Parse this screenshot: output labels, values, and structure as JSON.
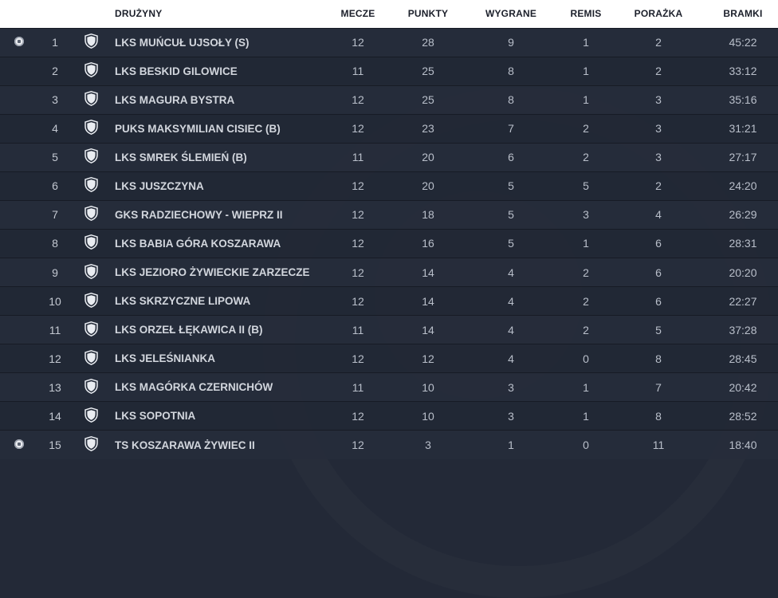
{
  "headers": {
    "team": "Drużyny",
    "played": "Mecze",
    "points": "Punkty",
    "wins": "Wygrane",
    "draws": "Remis",
    "losses": "Porażka",
    "goals": "Bramki"
  },
  "icons": {
    "ball": "soccer-ball-icon",
    "crest": "shield-crest-icon"
  },
  "rows": [
    {
      "pos": "1",
      "team": "LKS MUŃCUŁ UJSOŁY (S)",
      "played": "12",
      "points": "28",
      "wins": "9",
      "draws": "1",
      "losses": "2",
      "goals": "45:22",
      "marker": true
    },
    {
      "pos": "2",
      "team": "LKS BESKID GILOWICE",
      "played": "11",
      "points": "25",
      "wins": "8",
      "draws": "1",
      "losses": "2",
      "goals": "33:12",
      "marker": false
    },
    {
      "pos": "3",
      "team": "LKS MAGURA BYSTRA",
      "played": "12",
      "points": "25",
      "wins": "8",
      "draws": "1",
      "losses": "3",
      "goals": "35:16",
      "marker": false
    },
    {
      "pos": "4",
      "team": "PUKS MAKSYMILIAN CISIEC (B)",
      "played": "12",
      "points": "23",
      "wins": "7",
      "draws": "2",
      "losses": "3",
      "goals": "31:21",
      "marker": false
    },
    {
      "pos": "5",
      "team": "LKS SMREK ŚLEMIEŃ (B)",
      "played": "11",
      "points": "20",
      "wins": "6",
      "draws": "2",
      "losses": "3",
      "goals": "27:17",
      "marker": false
    },
    {
      "pos": "6",
      "team": "LKS JUSZCZYNA",
      "played": "12",
      "points": "20",
      "wins": "5",
      "draws": "5",
      "losses": "2",
      "goals": "24:20",
      "marker": false
    },
    {
      "pos": "7",
      "team": "GKS RADZIECHOWY - WIEPRZ II",
      "played": "12",
      "points": "18",
      "wins": "5",
      "draws": "3",
      "losses": "4",
      "goals": "26:29",
      "marker": false
    },
    {
      "pos": "8",
      "team": "LKS BABIA GÓRA KOSZARAWA",
      "played": "12",
      "points": "16",
      "wins": "5",
      "draws": "1",
      "losses": "6",
      "goals": "28:31",
      "marker": false
    },
    {
      "pos": "9",
      "team": "LKS JEZIORO ŻYWIECKIE ZARZECZE",
      "played": "12",
      "points": "14",
      "wins": "4",
      "draws": "2",
      "losses": "6",
      "goals": "20:20",
      "marker": false
    },
    {
      "pos": "10",
      "team": "LKS SKRZYCZNE LIPOWA",
      "played": "12",
      "points": "14",
      "wins": "4",
      "draws": "2",
      "losses": "6",
      "goals": "22:27",
      "marker": false
    },
    {
      "pos": "11",
      "team": "LKS ORZEŁ ŁĘKAWICA II (B)",
      "played": "11",
      "points": "14",
      "wins": "4",
      "draws": "2",
      "losses": "5",
      "goals": "37:28",
      "marker": false
    },
    {
      "pos": "12",
      "team": "LKS JELEŚNIANKA",
      "played": "12",
      "points": "12",
      "wins": "4",
      "draws": "0",
      "losses": "8",
      "goals": "28:45",
      "marker": false
    },
    {
      "pos": "13",
      "team": "LKS MAGÓRKA CZERNICHÓW",
      "played": "11",
      "points": "10",
      "wins": "3",
      "draws": "1",
      "losses": "7",
      "goals": "20:42",
      "marker": false
    },
    {
      "pos": "14",
      "team": "LKS SOPOTNIA",
      "played": "12",
      "points": "10",
      "wins": "3",
      "draws": "1",
      "losses": "8",
      "goals": "28:52",
      "marker": false
    },
    {
      "pos": "15",
      "team": "TS KOSZARAWA ŻYWIEC II",
      "played": "12",
      "points": "3",
      "wins": "1",
      "draws": "0",
      "losses": "11",
      "goals": "18:40",
      "marker": true
    }
  ]
}
